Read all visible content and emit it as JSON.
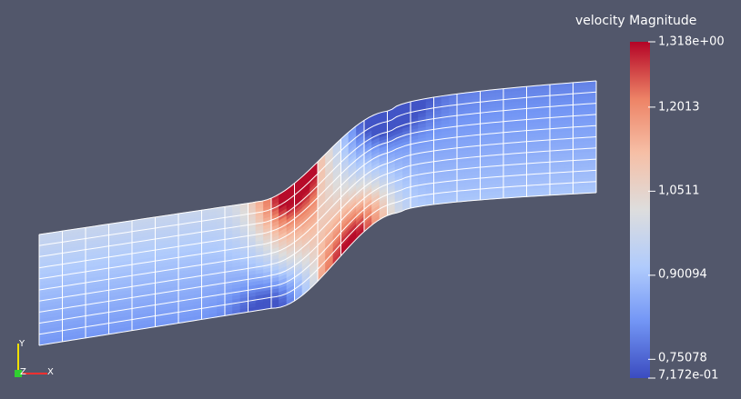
{
  "legend": {
    "title": "velocity Magnitude",
    "range_min": 0.7172,
    "range_max": 1.318,
    "tick_labels": [
      "1,318e+00",
      "1,2013",
      "1,0511",
      "0,90094",
      "0,75078",
      "7,172e-01"
    ],
    "tick_values": [
      1.318,
      1.2013,
      1.0511,
      0.90094,
      0.75078,
      0.7172
    ],
    "colormap": [
      "#3b4cc0",
      "#7396f5",
      "#b0cbfc",
      "#dddddd",
      "#f6bfa6",
      "#ed8366",
      "#b40426"
    ]
  },
  "orientation_axes": {
    "x_label": "X",
    "y_label": "Y",
    "z_label": "Z",
    "x_color": "#ff3030",
    "y_color": "#f0e000",
    "z_color": "#30d030"
  },
  "scene": {
    "background": "#52576b",
    "mesh_line_color": "#ffffff"
  }
}
